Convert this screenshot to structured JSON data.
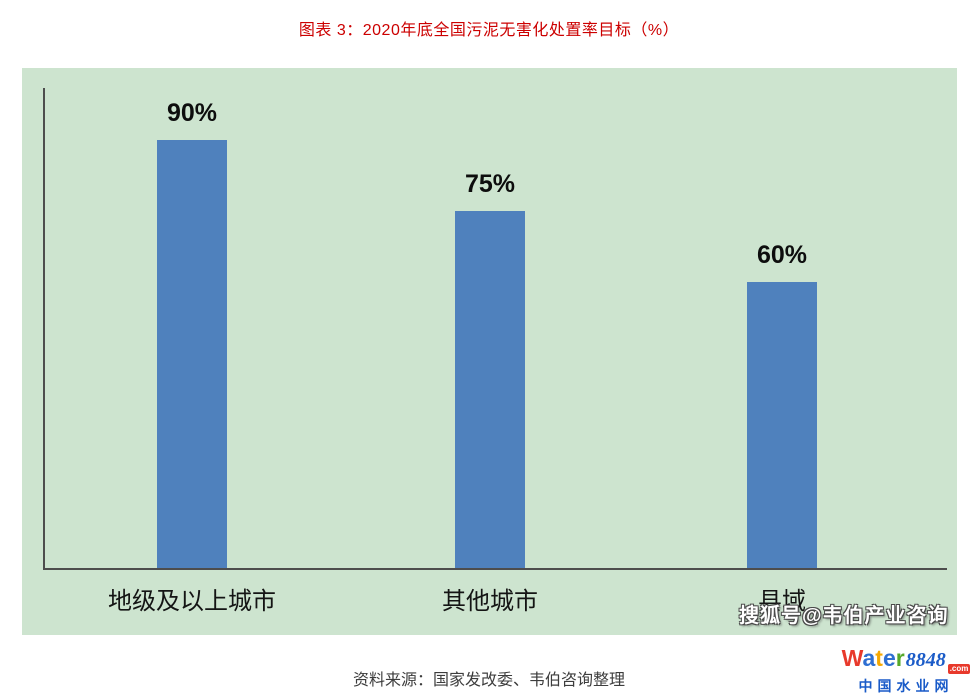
{
  "title": "图表 3：2020年底全国污泥无害化处置率目标（%）",
  "chart_data": {
    "type": "bar",
    "title": "图表 3：2020年底全国污泥无害化处置率目标（%）",
    "categories": [
      "地级及以上城市",
      "其他城市",
      "县域"
    ],
    "values": [
      90,
      75,
      60
    ],
    "value_labels": [
      "90%",
      "75%",
      "60%"
    ],
    "xlabel": "",
    "ylabel": "",
    "ylim": [
      0,
      100
    ],
    "grid": false,
    "legend": false,
    "bar_color": "#4f81bd",
    "plot_background": "#cde4cf"
  },
  "watermark": "搜狐号@韦伯产业咨询",
  "source_note": "资料来源：国家发改委、韦伯咨询整理",
  "colors": {
    "title": "#cc0000",
    "bar": "#4f81bd",
    "plot_background": "#cde4cf",
    "axis": "#4d4d4d",
    "watermark_fill": "#ffffff",
    "watermark_outline": "#4a4a4a"
  },
  "logo": {
    "word_letters": [
      {
        "char": "W",
        "color": "#e8392b"
      },
      {
        "char": "a",
        "color": "#2f6fd2"
      },
      {
        "char": "t",
        "color": "#f6a800"
      },
      {
        "char": "e",
        "color": "#2f6fd2"
      },
      {
        "char": "r",
        "color": "#55a82a"
      }
    ],
    "number": "8848",
    "number_color": "#1a5bc8",
    "tld": ".com",
    "tld_bg": "#e8392b",
    "subtitle": "中国水业网",
    "subtitle_color": "#1a5bc8"
  }
}
